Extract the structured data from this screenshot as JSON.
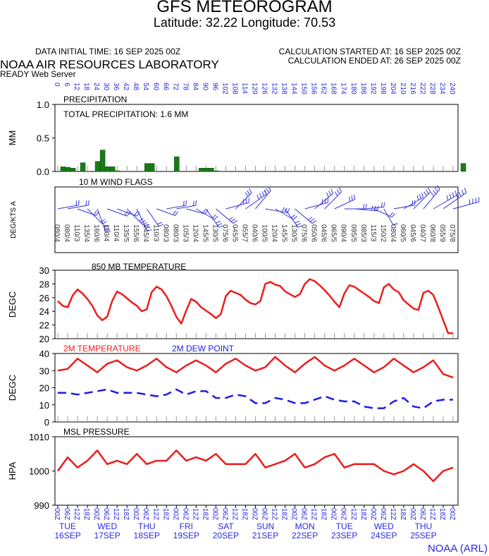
{
  "header": {
    "title": "GFS METEOROGRAM",
    "subtitle": "Latitude: 32.22 Longitude:  70.53",
    "init_time": "DATA INITIAL TIME: 16 SEP 2025 00Z",
    "calc_started": "CALCULATION STARTED AT: 16 SEP 2025 00Z",
    "calc_ended": "CALCULATION ENDED AT: 26 SEP 2025 00Z",
    "organization": "NOAA AIR RESOURCES LABORATORY",
    "server": "READY Web Server"
  },
  "footer": "NOAA (ARL)",
  "colors": {
    "temp": "#ee1c1c",
    "dew": "#1c1ce6",
    "precip": "#1a7a1a",
    "axis_text": "#2a2ae0",
    "wind": "#3333dd"
  },
  "time_axis": {
    "hours": [
      0,
      6,
      12,
      18,
      24,
      30,
      36,
      42,
      48,
      54,
      60,
      66,
      72,
      78,
      84,
      90,
      96,
      102,
      108,
      114,
      120,
      126,
      132,
      138,
      144,
      150,
      156,
      162,
      168,
      174,
      180,
      186,
      192,
      198,
      204,
      210,
      216,
      222,
      228,
      234,
      240
    ],
    "hour_labels": [
      "00",
      "06",
      "12",
      "18",
      "00",
      "06",
      "12",
      "18",
      "00",
      "06",
      "12",
      "18",
      "00",
      "06",
      "12",
      "18",
      "00",
      "06",
      "12",
      "18",
      "00",
      "06",
      "12",
      "18",
      "00",
      "06",
      "12",
      "18",
      "00",
      "06",
      "12",
      "18",
      "00",
      "06",
      "12",
      "18",
      "00",
      "06",
      "12",
      "18",
      "00"
    ],
    "days": [
      {
        "name": "TUE",
        "date": "16SEP"
      },
      {
        "name": "WED",
        "date": "17SEP"
      },
      {
        "name": "THU",
        "date": "18SEP"
      },
      {
        "name": "FRI",
        "date": "19SEP"
      },
      {
        "name": "SAT",
        "date": "20SEP"
      },
      {
        "name": "SUN",
        "date": "21SEP"
      },
      {
        "name": "MON",
        "date": "22SEP"
      },
      {
        "name": "TUE",
        "date": "23SEP"
      },
      {
        "name": "WED",
        "date": "24SEP"
      },
      {
        "name": "THU",
        "date": "25SEP"
      }
    ]
  },
  "chart_data": [
    {
      "type": "bar",
      "title": "PRECIPITATION",
      "annotation": "TOTAL PRECIPITATION:   1.6 MM",
      "ylabel": "MM",
      "ylim": [
        0,
        1.0
      ],
      "yticks": [
        "1.0",
        "0.5",
        "0.0"
      ],
      "x": [
        3,
        6,
        9,
        15,
        24,
        27,
        30,
        33,
        36,
        54,
        57,
        72,
        87,
        90,
        93,
        96,
        246
      ],
      "values": [
        0.07,
        0.06,
        0.05,
        0.13,
        0.15,
        0.32,
        0.07,
        0.07,
        0.01,
        0.12,
        0.12,
        0.22,
        0.05,
        0.05,
        0.05,
        0.01,
        0.12
      ]
    },
    {
      "type": "wind",
      "title": "10 M  WIND FLAGS",
      "ylabel": "DEG/KTS  A",
      "x": [
        0,
        6,
        12,
        18,
        24,
        30,
        36,
        42,
        48,
        54,
        60,
        66,
        72,
        78,
        84,
        90,
        96,
        102,
        108,
        114,
        120,
        126,
        132,
        138,
        144,
        150,
        156,
        162,
        168,
        174,
        180,
        186,
        192,
        198,
        204,
        210,
        216,
        222,
        228,
        234,
        240
      ],
      "directions": [
        80,
        80,
        110,
        135,
        160,
        110,
        110,
        135,
        155,
        145,
        110,
        80,
        80,
        105,
        120,
        145,
        130,
        75,
        45,
        55,
        40,
        100,
        120,
        145,
        130,
        75,
        50,
        45,
        65,
        90,
        95,
        85,
        115,
        150,
        80,
        60,
        45,
        40,
        60,
        55,
        75
      ],
      "speeds": [
        4,
        4,
        3,
        4,
        6,
        4,
        4,
        5,
        6,
        4,
        3,
        3,
        3,
        3,
        4,
        5,
        5,
        6,
        5,
        7,
        6,
        5,
        4,
        5,
        5,
        6,
        6,
        6,
        5,
        4,
        5,
        3,
        3,
        2,
        4,
        5,
        6,
        7,
        8,
        9,
        8
      ]
    },
    {
      "type": "line",
      "title": "850 MB  TEMPERATURE",
      "ylabel": "DEGC",
      "ylim": [
        20,
        30
      ],
      "yticks": [
        30,
        28,
        26,
        24,
        22,
        20
      ],
      "series": [
        {
          "color": "#ee1c1c",
          "x": [
            0,
            3,
            6,
            9,
            12,
            15,
            18,
            21,
            24,
            27,
            30,
            33,
            36,
            39,
            42,
            45,
            48,
            51,
            54,
            57,
            60,
            63,
            66,
            69,
            72,
            75,
            78,
            81,
            84,
            87,
            90,
            93,
            96,
            99,
            102,
            105,
            108,
            111,
            114,
            117,
            120,
            123,
            126,
            129,
            132,
            135,
            138,
            141,
            144,
            147,
            150,
            153,
            156,
            159,
            162,
            165,
            168,
            171,
            174,
            177,
            180,
            183,
            186,
            189,
            192,
            195,
            198,
            201,
            204,
            207,
            210,
            213,
            216,
            219,
            222,
            225,
            228,
            231,
            234,
            237,
            240
          ],
          "values": [
            25.5,
            24.8,
            24.6,
            26.3,
            27.2,
            26.6,
            25.8,
            24.8,
            23.4,
            22.7,
            23.2,
            25.5,
            26.9,
            26.5,
            25.9,
            25.3,
            24.8,
            24.0,
            24.3,
            26.8,
            27.6,
            27.2,
            26.2,
            24.8,
            23.2,
            22.2,
            24.1,
            25.8,
            25.4,
            24.6,
            24.1,
            23.6,
            23.0,
            23.6,
            26.2,
            27.0,
            26.7,
            26.4,
            25.7,
            25.2,
            25.0,
            25.5,
            28.0,
            28.3,
            27.9,
            27.7,
            26.9,
            26.5,
            26.1,
            26.5,
            28.0,
            28.7,
            28.4,
            27.8,
            27.1,
            26.3,
            25.4,
            24.6,
            26.6,
            27.8,
            27.6,
            27.1,
            26.6,
            26.1,
            25.5,
            25.2,
            27.5,
            28.0,
            27.2,
            26.8,
            25.6,
            25.0,
            24.4,
            24.2,
            26.7,
            27.0,
            26.4,
            24.6,
            22.7,
            20.8,
            20.8
          ]
        }
      ]
    },
    {
      "type": "line",
      "title": "",
      "ylabel": "DEGC",
      "ylim": [
        0,
        40
      ],
      "yticks": [
        40,
        30,
        20,
        10,
        0
      ],
      "series": [
        {
          "name": "2M TEMPERATURE",
          "color": "#ee1c1c",
          "x": [
            0,
            6,
            12,
            18,
            24,
            30,
            36,
            42,
            48,
            54,
            60,
            66,
            72,
            78,
            84,
            90,
            96,
            102,
            108,
            114,
            120,
            126,
            132,
            138,
            144,
            150,
            156,
            162,
            168,
            174,
            180,
            186,
            192,
            198,
            204,
            210,
            216,
            222,
            228,
            234,
            240
          ],
          "values": [
            30,
            31,
            37,
            33,
            29,
            34,
            36,
            32,
            30,
            33,
            37,
            32,
            29,
            33,
            36,
            33,
            29,
            34,
            37,
            33,
            30,
            32,
            38,
            33,
            29,
            34,
            38,
            33,
            30,
            33,
            37,
            33,
            29,
            32,
            37,
            33,
            29,
            32,
            36,
            28,
            26
          ]
        },
        {
          "name": "2M  DEW POINT",
          "color": "#1c1ce6",
          "dashed": true,
          "x": [
            0,
            6,
            12,
            18,
            24,
            30,
            36,
            42,
            48,
            54,
            60,
            66,
            72,
            78,
            84,
            90,
            96,
            102,
            108,
            114,
            120,
            126,
            132,
            138,
            144,
            150,
            156,
            162,
            168,
            174,
            180,
            186,
            192,
            198,
            204,
            210,
            216,
            222,
            228,
            234,
            240
          ],
          "values": [
            17,
            17,
            16,
            17,
            18,
            19,
            17,
            17,
            17,
            16,
            15,
            16,
            19,
            16,
            18,
            18,
            14,
            14,
            16,
            15,
            11,
            11,
            14,
            13,
            11,
            11,
            13,
            15,
            13,
            12,
            12,
            9,
            8,
            8,
            12,
            14,
            9,
            8,
            12,
            13,
            13
          ]
        }
      ]
    },
    {
      "type": "line",
      "title": "MSL PRESSURE",
      "ylabel": "HPA",
      "ylim": [
        990,
        1010
      ],
      "yticks": [
        1010,
        1000,
        990
      ],
      "series": [
        {
          "color": "#ee1c1c",
          "x": [
            0,
            6,
            12,
            18,
            24,
            30,
            36,
            42,
            48,
            54,
            60,
            66,
            72,
            78,
            84,
            90,
            96,
            102,
            108,
            114,
            120,
            126,
            132,
            138,
            144,
            150,
            156,
            162,
            168,
            174,
            180,
            186,
            192,
            198,
            204,
            210,
            216,
            222,
            228,
            234,
            240
          ],
          "values": [
            1000,
            1004,
            1001,
            1003,
            1006,
            1002,
            1003,
            1002,
            1005,
            1002,
            1003,
            1003,
            1006,
            1003,
            1004,
            1003,
            1005,
            1002,
            1002,
            1002,
            1005,
            1001,
            1002,
            1003,
            1005,
            1001,
            1002,
            1004,
            1005,
            1001,
            1002,
            1002,
            1002,
            1000,
            999,
            1000,
            1002,
            1000,
            997,
            1000,
            1001
          ]
        }
      ]
    }
  ]
}
